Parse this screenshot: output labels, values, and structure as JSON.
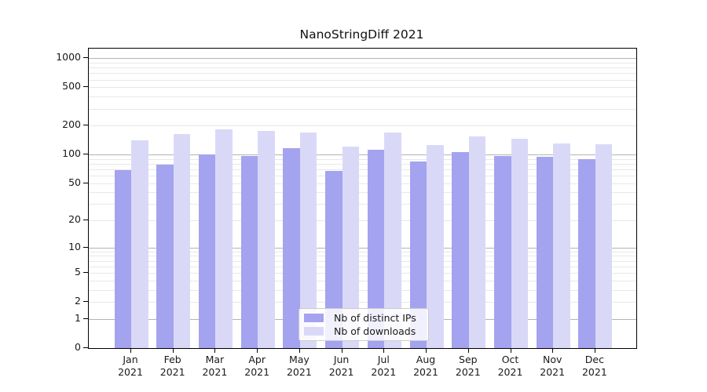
{
  "chart_data": {
    "type": "bar",
    "title": "NanoStringDiff 2021",
    "categories": [
      "Jan 2021",
      "Feb 2021",
      "Mar 2021",
      "Apr 2021",
      "May 2021",
      "Jun 2021",
      "Jul 2021",
      "Aug 2021",
      "Sep 2021",
      "Oct 2021",
      "Nov 2021",
      "Dec 2021"
    ],
    "series": [
      {
        "name": "Nb of distinct IPs",
        "color": "#a3a3ef",
        "values": [
          69,
          78,
          100,
          97,
          116,
          68,
          113,
          85,
          106,
          97,
          95,
          90
        ]
      },
      {
        "name": "Nb of downloads",
        "color": "#d9d9f7",
        "values": [
          140,
          165,
          183,
          175,
          171,
          120,
          170,
          125,
          155,
          147,
          131,
          128
        ]
      }
    ],
    "yticks": [
      0,
      1,
      2,
      5,
      10,
      20,
      50,
      100,
      200,
      500,
      1000
    ],
    "ylim": [
      0,
      1260
    ],
    "yscale": "log1p",
    "xlabel": "",
    "ylabel": "",
    "grid": "horizontal, major and minor",
    "legend_position": "lower center"
  },
  "colors": {
    "ips_bar": "#a3a3ef",
    "downloads_bar": "#d9d9f7",
    "grid_major": "#b3b3b3",
    "grid_minor": "#e8e8e8",
    "spine": "#000000",
    "text": "#1a1a1a",
    "legend_border": "#cccccc"
  }
}
